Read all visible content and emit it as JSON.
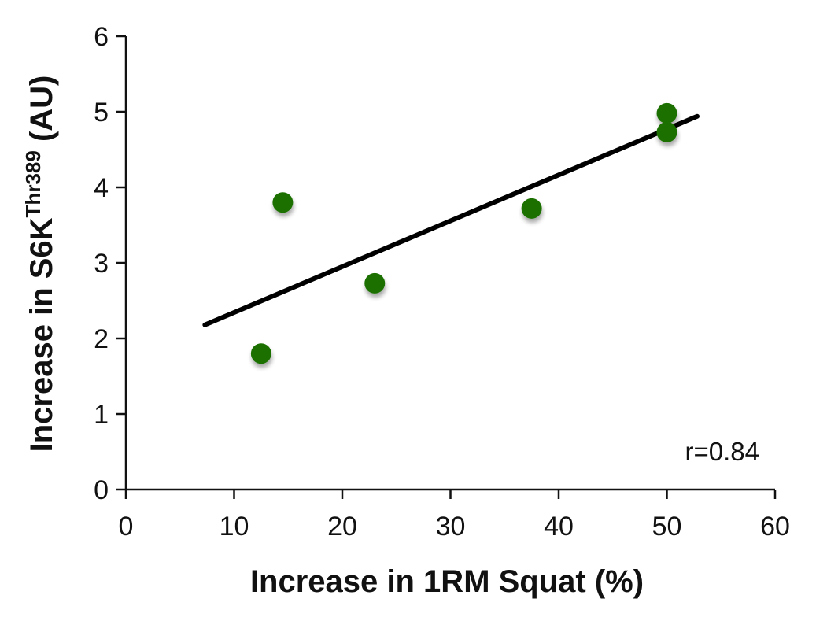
{
  "chart_data": {
    "type": "scatter",
    "title": "",
    "xlabel": "Increase in 1RM Squat (%)",
    "ylabel": {
      "prefix": "Increase in S6K",
      "superscript": "Thr389",
      "suffix": " (AU)"
    },
    "xlim": [
      0,
      60
    ],
    "ylim": [
      0,
      6
    ],
    "xticks": [
      0,
      10,
      20,
      30,
      40,
      50,
      60
    ],
    "yticks": [
      0,
      1,
      2,
      3,
      4,
      5,
      6
    ],
    "grid": false,
    "legend": "none",
    "points": [
      {
        "x": 12.5,
        "y": 1.8
      },
      {
        "x": 14.5,
        "y": 3.8
      },
      {
        "x": 23.0,
        "y": 2.73
      },
      {
        "x": 37.5,
        "y": 3.72
      },
      {
        "x": 50.0,
        "y": 4.98
      },
      {
        "x": 50.0,
        "y": 4.73
      }
    ],
    "trendline": {
      "x1": 7.3,
      "y1": 2.18,
      "x2": 52.8,
      "y2": 4.94
    },
    "annotation": "r=0.84",
    "colors": {
      "points": "#1a7000",
      "trendline": "#000000",
      "axes": "#111111"
    }
  }
}
